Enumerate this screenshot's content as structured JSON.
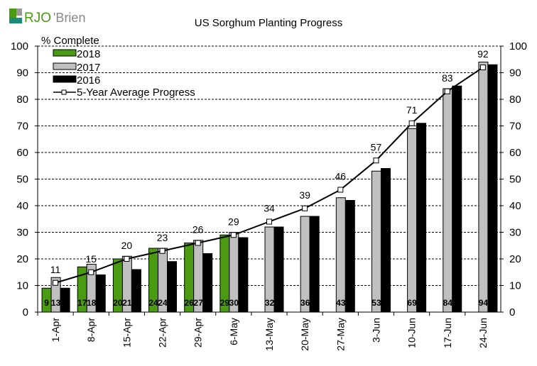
{
  "logo": {
    "text": "RJO'Brien"
  },
  "chart_data": {
    "type": "bar",
    "title": "US Sorghum Planting Progress",
    "ylabel": "% Complete",
    "xlabel": "",
    "ylim": [
      0,
      100
    ],
    "yticks": [
      0,
      10,
      20,
      30,
      40,
      50,
      60,
      70,
      80,
      90,
      100
    ],
    "grid": true,
    "legend_placement": "top-left",
    "categories": [
      "1-Apr",
      "8-Apr",
      "15-Apr",
      "22-Apr",
      "29-Apr",
      "6-May",
      "13-May",
      "20-May",
      "27-May",
      "3-Jun",
      "10-Jun",
      "17-Jun",
      "24-Jun"
    ],
    "series": [
      {
        "name": "2018",
        "type": "bar",
        "color": "#4a9a12",
        "values": [
          9,
          17,
          20,
          24,
          26,
          29,
          null,
          null,
          null,
          null,
          null,
          null,
          null
        ],
        "labeled": true
      },
      {
        "name": "2017",
        "type": "bar",
        "color": "#c0c0c0",
        "values": [
          13,
          18,
          21,
          24,
          27,
          30,
          32,
          36,
          43,
          53,
          69,
          84,
          94
        ],
        "labeled": true
      },
      {
        "name": "2016",
        "type": "bar",
        "color": "#000000",
        "values": [
          9,
          14,
          16,
          19,
          22,
          28,
          32,
          36,
          42,
          54,
          71,
          85,
          93
        ],
        "labeled": false
      },
      {
        "name": "5-Year Average Progress",
        "type": "line",
        "color": "#000000",
        "values": [
          11,
          15,
          20,
          23,
          26,
          29,
          34,
          39,
          46,
          57,
          71,
          83,
          92
        ],
        "labeled": true
      }
    ]
  }
}
